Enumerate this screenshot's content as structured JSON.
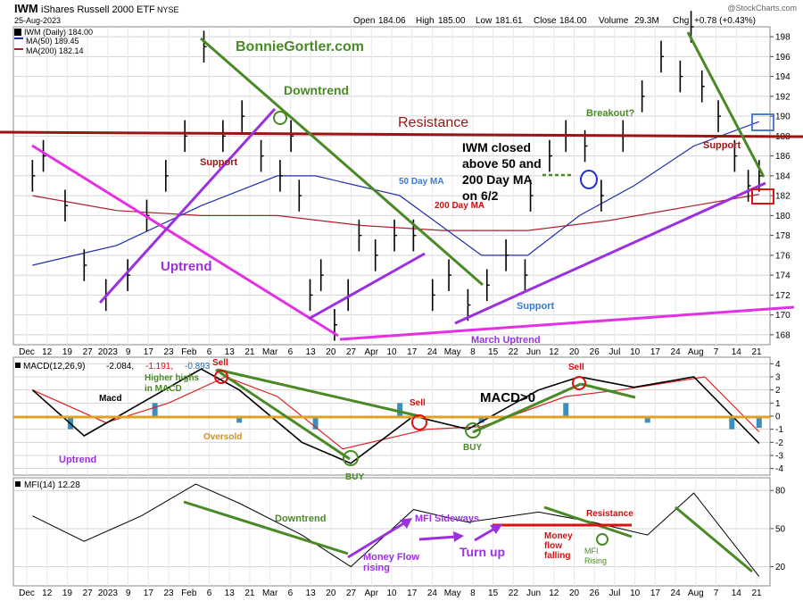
{
  "header": {
    "symbol": "IWM",
    "name": "iShares Russell 2000 ETF",
    "exchange": "NYSE",
    "date": "25-Aug-2023",
    "watermark": "@StockCharts.com",
    "open_label": "Open",
    "open": "184.06",
    "high_label": "High",
    "high": "185.00",
    "low_label": "Low",
    "low": "181.61",
    "close_label": "Close",
    "close": "184.00",
    "volume_label": "Volume",
    "volume": "29.3M",
    "chg_label": "Chg",
    "chg": "+0.78 (+0.43%)"
  },
  "legend": {
    "price": "IWM (Daily) 184.00",
    "ma50": "MA(50) 189.45",
    "ma200": "MA(200) 182.14",
    "macd_prefix": "MACD(12,26,9)",
    "macd_v1": "-2.084,",
    "macd_v2": "-1.191,",
    "macd_v3": "-0.893",
    "mfi": "MFI(14) 12.28"
  },
  "colors": {
    "price_bar": "#000000",
    "ma50": "#1f2fa8",
    "ma200": "#b01f2a",
    "trend_green": "#4a8a26",
    "uptrend_purple": "#9b30e0",
    "trendline_magenta": "#e52fe5",
    "resistance": "#9b1414",
    "macd_signal": "#e02020",
    "macd_hist": "#3a8fc0",
    "zero_line": "#e0a020",
    "grid": "#d4d4d4"
  },
  "annotations": {
    "site": "BonnieGortler.com",
    "downtrend": "Downtrend",
    "resistance": "Resistance",
    "support_left": "Support",
    "support_right": "Support",
    "support_lower": "Support",
    "uptrend": "Uptrend",
    "ma50_label": "50 Day MA",
    "ma200_label": "200 Day MA",
    "breakout": "Breakout?",
    "closed_note": [
      "IWM closed",
      "above 50 and",
      "200 Day MA",
      "on 6/2"
    ],
    "march_uptrend": "March Uptrend",
    "macd_line": "Macd",
    "higher_highs": [
      "Higher highs",
      "in MACD"
    ],
    "sell": "Sell",
    "buy": "BUY",
    "oversold": "Oversold",
    "macd_uptrend": "Uptrend",
    "macd_gt0": "MACD>0",
    "mfi_downtrend": "Downtrend",
    "mfi_sideways": "MFI Sideways",
    "money_flow_rising": [
      "Money Flow",
      "rising"
    ],
    "turn_up": "Turn up",
    "money_flow_falling": [
      "Money",
      "flow",
      "falling"
    ],
    "mfi_rising": [
      "MFI",
      "Rising"
    ],
    "mfi_resistance": "Resistance"
  },
  "x_axis": {
    "labels": [
      "Dec",
      "12",
      "19",
      "27",
      "2023",
      "9",
      "17",
      "23",
      "Feb",
      "6",
      "13",
      "21",
      "Mar",
      "6",
      "13",
      "20",
      "27",
      "Apr",
      "10",
      "17",
      "24",
      "May",
      "8",
      "15",
      "22",
      "Jun",
      "12",
      "20",
      "26",
      "Jul",
      "10",
      "17",
      "24",
      "Aug",
      "7",
      "14",
      "21"
    ]
  },
  "chart_data": [
    {
      "type": "line",
      "title": "IWM iShares Russell 2000 ETF NYSE",
      "ylim": [
        167,
        199
      ],
      "y_ticks": [
        168,
        170,
        172,
        174,
        176,
        178,
        180,
        182,
        184,
        186,
        188,
        190,
        192,
        194,
        196,
        198
      ],
      "series": [
        {
          "name": "IWM (Daily)",
          "x": [
            "2022-12-01",
            "2022-12-05",
            "2022-12-13",
            "2022-12-20",
            "2022-12-28",
            "2023-01-05",
            "2023-01-12",
            "2023-01-19",
            "2023-01-26",
            "2023-02-02",
            "2023-02-09",
            "2023-02-16",
            "2023-02-23",
            "2023-03-02",
            "2023-03-06",
            "2023-03-09",
            "2023-03-13",
            "2023-03-17",
            "2023-03-22",
            "2023-03-27",
            "2023-03-31",
            "2023-04-06",
            "2023-04-13",
            "2023-04-20",
            "2023-04-27",
            "2023-05-03",
            "2023-05-10",
            "2023-05-17",
            "2023-05-24",
            "2023-05-31",
            "2023-06-02",
            "2023-06-09",
            "2023-06-15",
            "2023-06-22",
            "2023-06-28",
            "2023-07-06",
            "2023-07-13",
            "2023-07-20",
            "2023-07-27",
            "2023-07-31",
            "2023-08-04",
            "2023-08-10",
            "2023-08-16",
            "2023-08-21",
            "2023-08-25"
          ],
          "values": [
            184,
            186,
            181,
            175,
            172,
            174,
            180,
            184,
            188,
            197,
            188,
            190,
            186,
            184,
            188,
            182,
            172,
            174,
            169,
            172,
            178,
            176,
            178,
            178,
            172,
            174,
            171,
            173,
            176,
            174,
            182,
            186,
            188,
            187,
            182,
            188,
            192,
            196,
            194,
            199,
            193,
            190,
            186,
            183,
            184
          ]
        },
        {
          "name": "MA(50)",
          "x": [
            "2022-12-01",
            "2023-01-01",
            "2023-02-01",
            "2023-03-01",
            "2023-03-15",
            "2023-04-15",
            "2023-05-15",
            "2023-06-01",
            "2023-06-20",
            "2023-07-10",
            "2023-08-01",
            "2023-08-25"
          ],
          "values": [
            175,
            177,
            181,
            184,
            184,
            182,
            176,
            176,
            180,
            183,
            187,
            189.45
          ]
        },
        {
          "name": "MA(200)",
          "x": [
            "2022-12-01",
            "2023-01-01",
            "2023-02-01",
            "2023-03-01",
            "2023-04-01",
            "2023-05-01",
            "2023-06-01",
            "2023-07-01",
            "2023-08-01",
            "2023-08-25"
          ],
          "values": [
            182,
            180.5,
            180,
            180,
            179,
            178.5,
            178.5,
            179.5,
            181,
            182.14
          ]
        }
      ],
      "levels": [
        {
          "name": "Resistance",
          "value": 188
        }
      ]
    },
    {
      "type": "line",
      "title": "MACD(12,26,9) -2.084, -1.191, -0.893",
      "ylim": [
        -4.5,
        4.5
      ],
      "y_ticks": [
        -4,
        -3,
        -2,
        -1,
        0,
        1,
        2,
        3,
        4
      ],
      "series": [
        {
          "name": "MACD",
          "x": [
            "2022-12-01",
            "2022-12-20",
            "2023-01-10",
            "2023-02-01",
            "2023-02-15",
            "2023-03-10",
            "2023-03-28",
            "2023-04-20",
            "2023-05-10",
            "2023-06-05",
            "2023-06-20",
            "2023-07-10",
            "2023-08-01",
            "2023-08-25"
          ],
          "values": [
            2,
            -1.5,
            1,
            3.6,
            2,
            -2,
            -3.6,
            0,
            -1,
            2,
            3,
            2.2,
            3,
            -2.08
          ]
        },
        {
          "name": "Signal",
          "x": [
            "2022-12-01",
            "2022-12-28",
            "2023-01-20",
            "2023-02-10",
            "2023-03-01",
            "2023-03-25",
            "2023-04-25",
            "2023-05-15",
            "2023-06-15",
            "2023-07-05",
            "2023-08-05",
            "2023-08-25"
          ],
          "values": [
            2,
            -0.5,
            1,
            3,
            1.5,
            -2.5,
            -1,
            -0.8,
            1.5,
            2,
            3,
            -1.19
          ]
        },
        {
          "name": "Histogram",
          "x": [
            "2022-12-15",
            "2023-01-15",
            "2023-02-15",
            "2023-03-15",
            "2023-04-15",
            "2023-05-15",
            "2023-06-15",
            "2023-07-15",
            "2023-08-15",
            "2023-08-25"
          ],
          "values": [
            -1,
            1,
            -0.5,
            -1,
            1,
            -0.5,
            1,
            -0.5,
            -1,
            -0.89
          ]
        }
      ]
    },
    {
      "type": "line",
      "title": "MFI(14) 12.28",
      "ylim": [
        5,
        90
      ],
      "y_ticks": [
        20,
        50,
        80
      ],
      "series": [
        {
          "name": "MFI(14)",
          "x": [
            "2022-12-01",
            "2022-12-20",
            "2023-01-10",
            "2023-01-30",
            "2023-02-15",
            "2023-03-10",
            "2023-03-28",
            "2023-04-20",
            "2023-05-10",
            "2023-06-05",
            "2023-06-25",
            "2023-07-15",
            "2023-08-01",
            "2023-08-25"
          ],
          "values": [
            60,
            40,
            60,
            85,
            70,
            45,
            20,
            65,
            55,
            63,
            55,
            45,
            78,
            12.28
          ]
        }
      ]
    }
  ]
}
